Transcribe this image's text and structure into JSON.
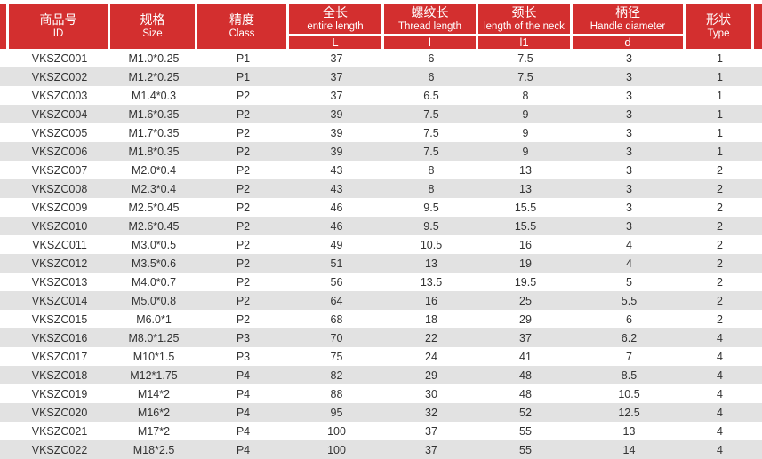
{
  "colors": {
    "header_red": "#d32f2f",
    "stripe_gray": "#e2e2e2",
    "header_text": "#ffffff",
    "body_text": "#333333"
  },
  "table": {
    "columns": [
      {
        "zh": "商品号",
        "en": "ID",
        "sub": null
      },
      {
        "zh": "规格",
        "en": "Size",
        "sub": null
      },
      {
        "zh": "精度",
        "en": "Class",
        "sub": null
      },
      {
        "zh": "全长",
        "en": "entire length",
        "sub": "L"
      },
      {
        "zh": "螺纹长",
        "en": "Thread length",
        "sub": "l"
      },
      {
        "zh": "颈长",
        "en": "length of the neck",
        "sub": "l1"
      },
      {
        "zh": "柄径",
        "en": "Handle diameter",
        "sub": "d"
      },
      {
        "zh": "形状",
        "en": "Type",
        "sub": null
      }
    ],
    "rows": [
      [
        "VKSZC001",
        "M1.0*0.25",
        "P1",
        "37",
        "6",
        "7.5",
        "3",
        "1"
      ],
      [
        "VKSZC002",
        "M1.2*0.25",
        "P1",
        "37",
        "6",
        "7.5",
        "3",
        "1"
      ],
      [
        "VKSZC003",
        "M1.4*0.3",
        "P2",
        "37",
        "6.5",
        "8",
        "3",
        "1"
      ],
      [
        "VKSZC004",
        "M1.6*0.35",
        "P2",
        "39",
        "7.5",
        "9",
        "3",
        "1"
      ],
      [
        "VKSZC005",
        "M1.7*0.35",
        "P2",
        "39",
        "7.5",
        "9",
        "3",
        "1"
      ],
      [
        "VKSZC006",
        "M1.8*0.35",
        "P2",
        "39",
        "7.5",
        "9",
        "3",
        "1"
      ],
      [
        "VKSZC007",
        "M2.0*0.4",
        "P2",
        "43",
        "8",
        "13",
        "3",
        "2"
      ],
      [
        "VKSZC008",
        "M2.3*0.4",
        "P2",
        "43",
        "8",
        "13",
        "3",
        "2"
      ],
      [
        "VKSZC009",
        "M2.5*0.45",
        "P2",
        "46",
        "9.5",
        "15.5",
        "3",
        "2"
      ],
      [
        "VKSZC010",
        "M2.6*0.45",
        "P2",
        "46",
        "9.5",
        "15.5",
        "3",
        "2"
      ],
      [
        "VKSZC011",
        "M3.0*0.5",
        "P2",
        "49",
        "10.5",
        "16",
        "4",
        "2"
      ],
      [
        "VKSZC012",
        "M3.5*0.6",
        "P2",
        "51",
        "13",
        "19",
        "4",
        "2"
      ],
      [
        "VKSZC013",
        "M4.0*0.7",
        "P2",
        "56",
        "13.5",
        "19.5",
        "5",
        "2"
      ],
      [
        "VKSZC014",
        "M5.0*0.8",
        "P2",
        "64",
        "16",
        "25",
        "5.5",
        "2"
      ],
      [
        "VKSZC015",
        "M6.0*1",
        "P2",
        "68",
        "18",
        "29",
        "6",
        "2"
      ],
      [
        "VKSZC016",
        "M8.0*1.25",
        "P3",
        "70",
        "22",
        "37",
        "6.2",
        "4"
      ],
      [
        "VKSZC017",
        "M10*1.5",
        "P3",
        "75",
        "24",
        "41",
        "7",
        "4"
      ],
      [
        "VKSZC018",
        "M12*1.75",
        "P4",
        "82",
        "29",
        "48",
        "8.5",
        "4"
      ],
      [
        "VKSZC019",
        "M14*2",
        "P4",
        "88",
        "30",
        "48",
        "10.5",
        "4"
      ],
      [
        "VKSZC020",
        "M16*2",
        "P4",
        "95",
        "32",
        "52",
        "12.5",
        "4"
      ],
      [
        "VKSZC021",
        "M17*2",
        "P4",
        "100",
        "37",
        "55",
        "13",
        "4"
      ],
      [
        "VKSZC022",
        "M18*2.5",
        "P4",
        "100",
        "37",
        "55",
        "14",
        "4"
      ]
    ]
  }
}
